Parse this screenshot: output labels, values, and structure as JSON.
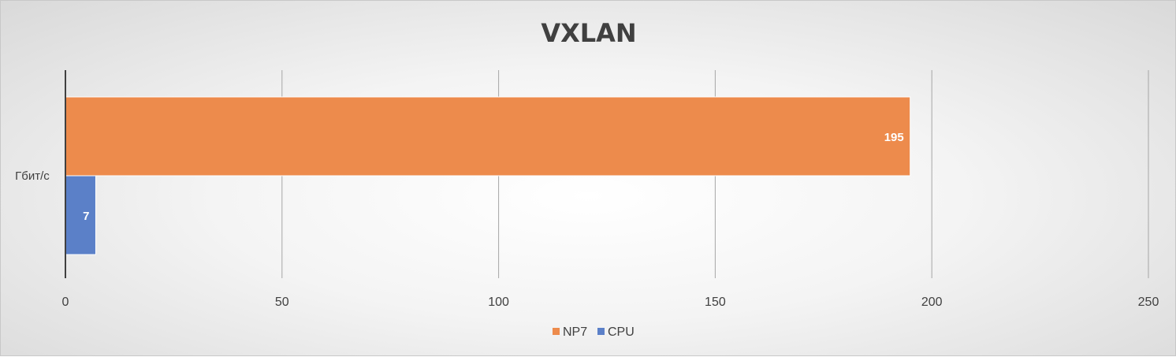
{
  "chart_data": {
    "type": "bar",
    "orientation": "horizontal",
    "title": "VXLAN",
    "categories": [
      "Гбит/с"
    ],
    "series": [
      {
        "name": "NP7",
        "values": [
          195
        ],
        "color": "#ED8B4C"
      },
      {
        "name": "CPU",
        "values": [
          7
        ],
        "color": "#5B80C8"
      }
    ],
    "xlim": [
      0,
      250
    ],
    "xticks": [
      0,
      50,
      100,
      150,
      200,
      250
    ],
    "grid": true,
    "legend": "bottom",
    "data_labels": [
      "195",
      "7"
    ],
    "xlabel": "",
    "ylabel": ""
  }
}
